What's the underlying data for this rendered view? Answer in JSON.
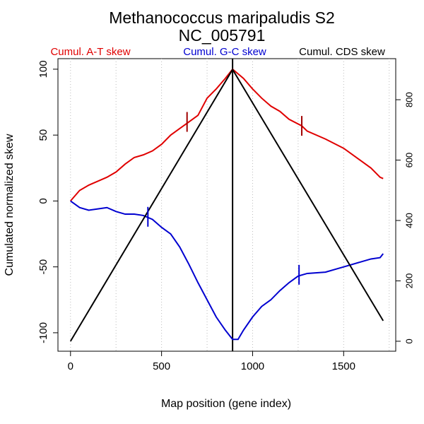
{
  "chart_data": {
    "type": "line",
    "title": "Methanococcus maripaludis S2",
    "subtitle": "NC_005791",
    "xlabel": "Map position (gene index)",
    "ylabel": "Cumulated normalized skew",
    "xlim": [
      -69,
      1786
    ],
    "ylim": [
      -114,
      108
    ],
    "y2lim": [
      -33,
      936
    ],
    "xticks": [
      0,
      500,
      1000,
      1500
    ],
    "yticks": [
      -100,
      -50,
      0,
      50,
      100
    ],
    "y2ticks": [
      0,
      200,
      400,
      600,
      800
    ],
    "grid_x": [
      0,
      250,
      500,
      750,
      1000,
      1250,
      1500,
      1750
    ],
    "vlines": [
      890
    ],
    "series": [
      {
        "name": "Cumul. A-T skew",
        "color": "#e00000",
        "x": [
          0,
          50,
          100,
          200,
          250,
          300,
          350,
          400,
          450,
          500,
          550,
          600,
          650,
          700,
          750,
          800,
          850,
          890,
          950,
          1000,
          1050,
          1100,
          1150,
          1200,
          1270,
          1300,
          1400,
          1500,
          1600,
          1650,
          1700,
          1717
        ],
        "values": [
          0,
          8,
          12,
          18,
          22,
          28,
          33,
          35,
          38,
          43,
          50,
          55,
          60,
          65,
          78,
          85,
          93,
          100,
          93,
          85,
          78,
          72,
          68,
          62,
          57,
          53,
          47,
          40,
          30,
          25,
          18,
          17
        ]
      },
      {
        "name": "Cumul. G-C skew",
        "color": "#0000d0",
        "x": [
          0,
          50,
          100,
          150,
          200,
          250,
          300,
          350,
          400,
          450,
          500,
          550,
          600,
          650,
          700,
          750,
          800,
          850,
          890,
          920,
          950,
          1000,
          1050,
          1100,
          1150,
          1200,
          1250,
          1300,
          1400,
          1500,
          1600,
          1650,
          1700,
          1717
        ],
        "values": [
          0,
          -5,
          -7,
          -6,
          -5,
          -8,
          -10,
          -10,
          -11,
          -14,
          -20,
          -25,
          -35,
          -48,
          -62,
          -75,
          -88,
          -98,
          -105,
          -105,
          -98,
          -88,
          -80,
          -75,
          -68,
          -62,
          -57,
          -55,
          -54,
          -50,
          -46,
          -44,
          -43,
          -40
        ]
      },
      {
        "name": "Cumul. CDS skew",
        "color": "#000000",
        "axis": "y2",
        "x": [
          0,
          890,
          1717
        ],
        "values": [
          0,
          900,
          68
        ]
      }
    ],
    "markers": [
      {
        "series": 0,
        "x": 640,
        "y": 60
      },
      {
        "series": 0,
        "x": 1270,
        "y": 57
      },
      {
        "series": 1,
        "x": 425,
        "y": -12
      },
      {
        "series": 1,
        "x": 1255,
        "y": -56
      }
    ]
  }
}
